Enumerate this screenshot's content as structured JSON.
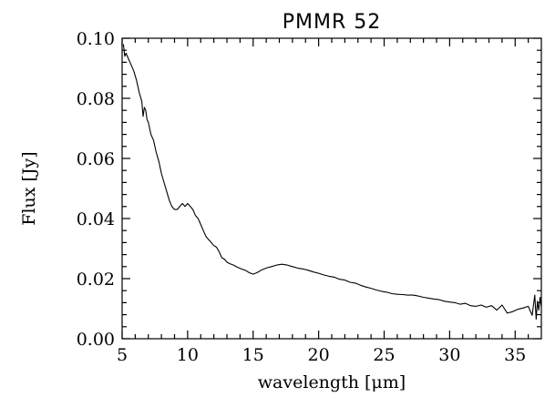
{
  "chart_data": {
    "type": "line",
    "title": "PMMR 52",
    "xlabel": "wavelength [μm]",
    "ylabel": "Flux [Jy]",
    "xlim": [
      5,
      37
    ],
    "ylim": [
      0.0,
      0.1
    ],
    "xticks": [
      5,
      10,
      15,
      20,
      25,
      30,
      35
    ],
    "xtick_labels": [
      "5",
      "10",
      "15",
      "20",
      "25",
      "30",
      "35"
    ],
    "yticks": [
      0.0,
      0.02,
      0.04,
      0.06,
      0.08,
      0.1
    ],
    "ytick_labels": [
      "0.00",
      "0.02",
      "0.04",
      "0.06",
      "0.08",
      "0.10"
    ],
    "grid": false,
    "series": [
      {
        "x": [
          5.1,
          5.2,
          5.3,
          5.5,
          5.7,
          5.9,
          6.1,
          6.3,
          6.5,
          6.6,
          6.7,
          6.8,
          6.9,
          7.0,
          7.2,
          7.4,
          7.6,
          7.8,
          8.0,
          8.2,
          8.4,
          8.6,
          8.8,
          9.0,
          9.2,
          9.4,
          9.6,
          9.8,
          10.0,
          10.2,
          10.4,
          10.6,
          10.8,
          11.0,
          11.2,
          11.4,
          11.6,
          11.8,
          12.0,
          12.2,
          12.4,
          12.6,
          12.8,
          13.0,
          13.2,
          13.5,
          13.8,
          14.1,
          14.4,
          14.7,
          15.0,
          15.3,
          15.6,
          16.0,
          16.4,
          16.8,
          17.2,
          17.6,
          18.0,
          18.4,
          18.8,
          19.2,
          19.6,
          20.0,
          20.4,
          20.8,
          21.2,
          21.6,
          22.0,
          22.4,
          22.8,
          23.2,
          23.6,
          24.0,
          24.4,
          24.8,
          25.2,
          25.6,
          26.0,
          26.4,
          26.8,
          27.2,
          27.6,
          28.0,
          28.4,
          28.8,
          29.2,
          29.6,
          30.0,
          30.4,
          30.8,
          31.2,
          31.6,
          32.0,
          32.4,
          32.8,
          33.2,
          33.6,
          34.0,
          34.4,
          34.8,
          35.2,
          35.6,
          36.0,
          36.3,
          36.5,
          36.6,
          36.7,
          36.8,
          36.9,
          37.0
        ],
        "y": [
          0.098,
          0.094,
          0.095,
          0.093,
          0.091,
          0.089,
          0.086,
          0.082,
          0.079,
          0.074,
          0.077,
          0.076,
          0.073,
          0.072,
          0.068,
          0.066,
          0.062,
          0.059,
          0.055,
          0.052,
          0.049,
          0.046,
          0.044,
          0.043,
          0.043,
          0.044,
          0.045,
          0.044,
          0.045,
          0.044,
          0.043,
          0.041,
          0.04,
          0.038,
          0.036,
          0.034,
          0.033,
          0.032,
          0.031,
          0.0305,
          0.029,
          0.027,
          0.0265,
          0.0255,
          0.025,
          0.0245,
          0.0238,
          0.0232,
          0.0228,
          0.022,
          0.0215,
          0.022,
          0.0228,
          0.0235,
          0.024,
          0.0245,
          0.0248,
          0.0245,
          0.024,
          0.0235,
          0.0232,
          0.0228,
          0.0222,
          0.0218,
          0.0212,
          0.0208,
          0.0205,
          0.0198,
          0.0195,
          0.0188,
          0.0185,
          0.0178,
          0.0172,
          0.0168,
          0.0162,
          0.0158,
          0.0155,
          0.015,
          0.0148,
          0.0147,
          0.0145,
          0.0145,
          0.0142,
          0.0138,
          0.0135,
          0.0132,
          0.013,
          0.0125,
          0.0122,
          0.012,
          0.0115,
          0.0118,
          0.011,
          0.0108,
          0.0112,
          0.0105,
          0.011,
          0.0095,
          0.0112,
          0.0085,
          0.009,
          0.0098,
          0.0102,
          0.0108,
          0.0078,
          0.0145,
          0.0065,
          0.0125,
          0.0095,
          0.0138,
          0.0105
        ]
      }
    ]
  }
}
